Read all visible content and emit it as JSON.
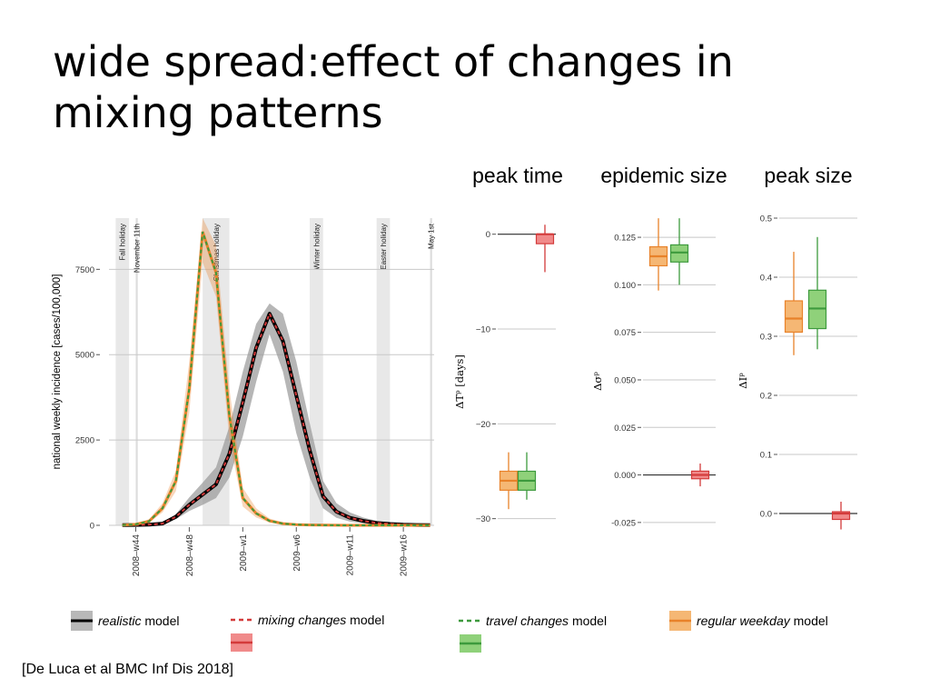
{
  "slide": {
    "title_lines": [
      "wide spread:effect of changes in",
      "mixing patterns"
    ],
    "citation": "[De Luca et al BMC Inf Dis 2018]"
  },
  "colors": {
    "realistic": "#000000",
    "realistic_band": "#9a9a9a",
    "mixing": "#d33a3a",
    "mixing_box_fill": "#f08a8a",
    "travel": "#3d9a3d",
    "travel_box_fill": "#8fd17a",
    "weekday": "#e8822a",
    "weekday_box_fill": "#f5b774",
    "holiday_band": "#e8e8e8",
    "gridline": "#c8c8c8"
  },
  "chart_data": [
    {
      "type": "line",
      "ylabel": "national weekly incidence [cases/100,000]",
      "ylim": [
        0,
        9000
      ],
      "yticks": [
        0,
        2500,
        5000,
        7500
      ],
      "ytick_labels": [
        "0",
        "2500",
        "5000",
        "7500"
      ],
      "xlim": [
        0,
        24.3
      ],
      "xticks": [
        2,
        6,
        10,
        14,
        18,
        22
      ],
      "xtick_labels": [
        "2008–w44",
        "2008–w48",
        "2009–w1",
        "2009–w6",
        "2009–w11",
        "2009–w16"
      ],
      "holidays": [
        {
          "label": "Fall holiday",
          "start": 0.5,
          "end": 1.5
        },
        {
          "label": "November 11th",
          "start": 2.0,
          "end": 2.15
        },
        {
          "label": "Christmas holiday",
          "start": 7.0,
          "end": 9.0
        },
        {
          "label": "Winter holiday",
          "start": 15.0,
          "end": 16.0
        },
        {
          "label": "Easter holiday",
          "start": 20.0,
          "end": 21.0
        },
        {
          "label": "May 1st",
          "start": 24.0,
          "end": 24.15
        }
      ],
      "x": [
        1,
        2,
        3,
        4,
        5,
        6,
        7,
        8,
        9,
        10,
        11,
        12,
        13,
        14,
        15,
        16,
        17,
        18,
        19,
        20,
        21,
        22,
        23,
        24
      ],
      "series": [
        {
          "name": "realistic",
          "band": true,
          "values": [
            5,
            10,
            20,
            50,
            250,
            600,
            900,
            1200,
            2100,
            3600,
            5200,
            6200,
            5400,
            3800,
            2200,
            850,
            400,
            220,
            130,
            70,
            40,
            20,
            10,
            5
          ],
          "lower": [
            0,
            5,
            10,
            30,
            180,
            420,
            600,
            800,
            1400,
            2600,
            4200,
            5600,
            4500,
            2700,
            1400,
            500,
            220,
            110,
            60,
            30,
            15,
            8,
            3,
            0
          ],
          "upper": [
            10,
            18,
            35,
            90,
            330,
            820,
            1250,
            1700,
            2900,
            4500,
            5900,
            6500,
            6200,
            4800,
            3000,
            1300,
            650,
            380,
            230,
            130,
            70,
            35,
            18,
            10
          ]
        },
        {
          "name": "mixing changes",
          "values": [
            5,
            10,
            20,
            50,
            250,
            600,
            900,
            1200,
            2100,
            3600,
            5200,
            6200,
            5400,
            3800,
            2200,
            850,
            400,
            220,
            130,
            70,
            40,
            20,
            10,
            5
          ]
        },
        {
          "name": "travel changes",
          "band": true,
          "values": [
            5,
            30,
            120,
            500,
            1300,
            4000,
            8600,
            7400,
            3200,
            800,
            350,
            130,
            50,
            20,
            10,
            5,
            2,
            0,
            0,
            0,
            0,
            0,
            0,
            0
          ],
          "lower": [
            0,
            15,
            80,
            380,
            1000,
            3300,
            7700,
            6700,
            2500,
            550,
            230,
            80,
            30,
            10,
            5,
            2,
            0,
            0,
            0,
            0,
            0,
            0,
            0,
            0
          ],
          "upper": [
            10,
            50,
            180,
            650,
            1600,
            4800,
            9000,
            8200,
            4000,
            1100,
            500,
            200,
            80,
            35,
            18,
            10,
            5,
            2,
            0,
            0,
            0,
            0,
            0,
            0
          ]
        }
      ]
    },
    {
      "type": "box",
      "title": "peak time",
      "ylabel": "ΔTᵖ [days]",
      "ylim": [
        -30.8,
        1.6
      ],
      "yticks": [
        0,
        -10,
        -20,
        -30
      ],
      "ytick_labels": [
        "0",
        "−10",
        "−20",
        "−30"
      ],
      "boxes": [
        {
          "group": "regular weekday",
          "min": -29,
          "q1": -27,
          "median": -26,
          "q3": -25,
          "max": -23
        },
        {
          "group": "travel changes",
          "min": -28,
          "q1": -27,
          "median": -26,
          "q3": -25,
          "max": -23
        },
        {
          "group": "mixing changes",
          "min": -4,
          "q1": -1,
          "median": 0,
          "q3": 0,
          "max": 1
        }
      ]
    },
    {
      "type": "box",
      "title": "epidemic size",
      "ylabel": "Δσᵖ",
      "ylim": [
        -0.0265,
        0.1346
      ],
      "yticks": [
        0.125,
        0.1,
        0.075,
        0.05,
        0.025,
        0.0,
        -0.025
      ],
      "ytick_labels": [
        "0.125",
        "0.100",
        "0.075",
        "0.050",
        "0.025",
        "0.000",
        "-0.025"
      ],
      "boxes": [
        {
          "group": "regular weekday",
          "min": 0.097,
          "q1": 0.11,
          "median": 0.115,
          "q3": 0.12,
          "max": 0.135
        },
        {
          "group": "travel changes",
          "min": 0.1,
          "q1": 0.112,
          "median": 0.117,
          "q3": 0.121,
          "max": 0.135
        },
        {
          "group": "mixing changes",
          "min": -0.006,
          "q1": -0.002,
          "median": 0.0,
          "q3": 0.002,
          "max": 0.006
        }
      ]
    },
    {
      "type": "box",
      "title": "peak size",
      "ylabel": "ΔIᵖ",
      "ylim": [
        -0.02,
        0.5
      ],
      "yticks": [
        0.5,
        0.4,
        0.3,
        0.2,
        0.1,
        0.0
      ],
      "ytick_labels": [
        "0.5",
        "0.4",
        "0.3",
        "0.2",
        "0.1",
        "0.0"
      ],
      "boxes": [
        {
          "group": "regular weekday",
          "min": 0.268,
          "q1": 0.307,
          "median": 0.33,
          "q3": 0.36,
          "max": 0.443
        },
        {
          "group": "travel changes",
          "min": 0.278,
          "q1": 0.313,
          "median": 0.347,
          "q3": 0.378,
          "max": 0.468
        },
        {
          "group": "mixing changes",
          "min": -0.027,
          "q1": -0.01,
          "median": 0.0,
          "q3": 0.003,
          "max": 0.02
        }
      ]
    }
  ],
  "legend": [
    {
      "key": "realistic",
      "italic": "realistic",
      "suffix": " model"
    },
    {
      "key": "mixing",
      "italic": "mixing changes",
      "suffix": " model"
    },
    {
      "key": "travel",
      "italic": "travel changes",
      "suffix": " model"
    },
    {
      "key": "weekday",
      "italic": "regular weekday",
      "suffix": " model"
    }
  ]
}
